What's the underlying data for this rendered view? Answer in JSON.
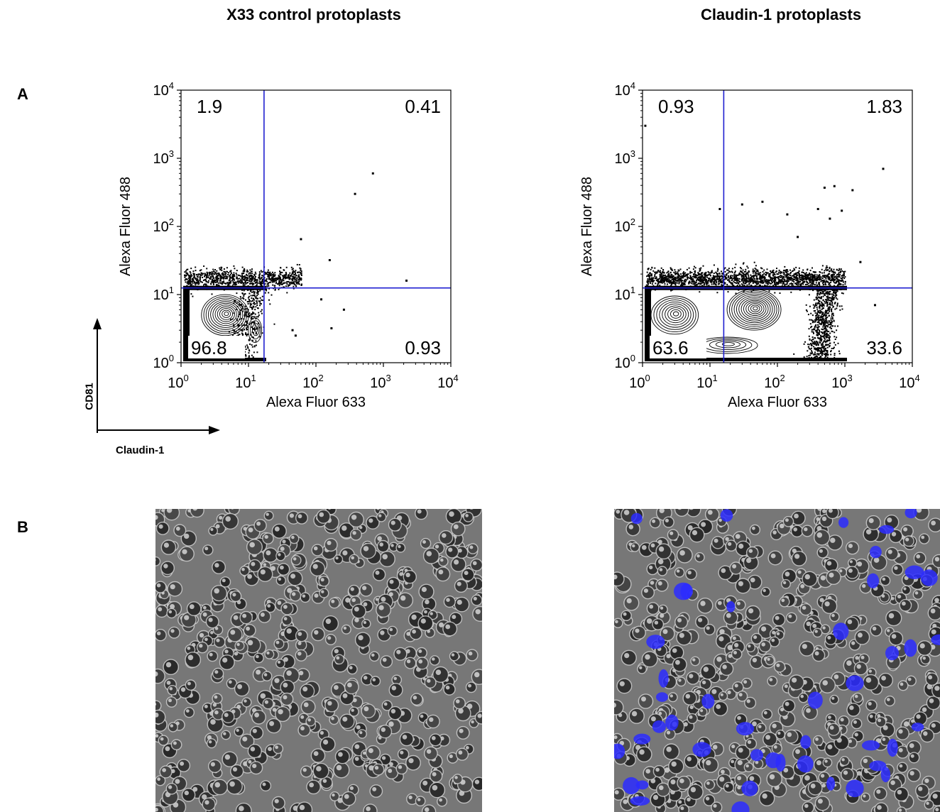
{
  "figure": {
    "column_titles": [
      "X33 control protoplasts",
      "Claudin-1 protoplasts"
    ],
    "panel_labels": [
      "A",
      "B"
    ],
    "legend_axes": {
      "vertical": "CD81",
      "horizontal": "Claudin-1"
    }
  },
  "chart_data": [
    {
      "type": "scatter",
      "title": "X33 control protoplasts",
      "xlabel": "Alexa Fluor 633",
      "ylabel": "Alexa Fluor 488",
      "xscale": "log",
      "yscale": "log",
      "xlim": [
        1,
        10000
      ],
      "ylim": [
        1,
        10000
      ],
      "xticks": [
        {
          "value": 1,
          "base": "10",
          "exp": "0"
        },
        {
          "value": 10,
          "base": "10",
          "exp": "1"
        },
        {
          "value": 100,
          "base": "10",
          "exp": "2"
        },
        {
          "value": 1000,
          "base": "10",
          "exp": "3"
        },
        {
          "value": 10000,
          "base": "10",
          "exp": "4"
        }
      ],
      "yticks": [
        {
          "value": 1,
          "base": "10",
          "exp": "0"
        },
        {
          "value": 10,
          "base": "10",
          "exp": "1"
        },
        {
          "value": 100,
          "base": "10",
          "exp": "2"
        },
        {
          "value": 1000,
          "base": "10",
          "exp": "3"
        },
        {
          "value": 10000,
          "base": "10",
          "exp": "4"
        }
      ],
      "gate": {
        "x": 17,
        "y": 12.5,
        "color": "#1f1fd0"
      },
      "quadrants": [
        {
          "position": "upper-left",
          "label": "1.9"
        },
        {
          "position": "upper-right",
          "label": "0.41"
        },
        {
          "position": "lower-left",
          "label": "96.8"
        },
        {
          "position": "lower-right",
          "label": "0.93"
        }
      ],
      "outliers": [
        [
          700,
          600
        ],
        [
          380,
          300
        ],
        [
          2200,
          16
        ],
        [
          60,
          65
        ],
        [
          160,
          32
        ],
        [
          260,
          6
        ],
        [
          120,
          8.5
        ],
        [
          170,
          3.2
        ],
        [
          45,
          3.0
        ],
        [
          50,
          2.5
        ]
      ],
      "populations": [
        {
          "cx": 4.5,
          "cy": 5.0,
          "wx": 0.35,
          "wy": 0.3,
          "rings": 11
        },
        {
          "cx": 12.5,
          "cy": 3.0,
          "wx": 0.1,
          "wy": 0.18,
          "rings": 4
        }
      ]
    },
    {
      "type": "scatter",
      "title": "Claudin-1 protoplasts",
      "xlabel": "Alexa Fluor 633",
      "ylabel": "Alexa Fluor 488",
      "xscale": "log",
      "yscale": "log",
      "xlim": [
        1,
        10000
      ],
      "ylim": [
        1,
        10000
      ],
      "xticks": [
        {
          "value": 1,
          "base": "10",
          "exp": "0"
        },
        {
          "value": 10,
          "base": "10",
          "exp": "1"
        },
        {
          "value": 100,
          "base": "10",
          "exp": "2"
        },
        {
          "value": 1000,
          "base": "10",
          "exp": "3"
        },
        {
          "value": 10000,
          "base": "10",
          "exp": "4"
        }
      ],
      "yticks": [
        {
          "value": 1,
          "base": "10",
          "exp": "0"
        },
        {
          "value": 10,
          "base": "10",
          "exp": "1"
        },
        {
          "value": 100,
          "base": "10",
          "exp": "2"
        },
        {
          "value": 1000,
          "base": "10",
          "exp": "3"
        },
        {
          "value": 10000,
          "base": "10",
          "exp": "4"
        }
      ],
      "gate": {
        "x": 16,
        "y": 12.5,
        "color": "#1f1fd0"
      },
      "quadrants": [
        {
          "position": "upper-left",
          "label": "0.93"
        },
        {
          "position": "upper-right",
          "label": "1.83"
        },
        {
          "position": "lower-left",
          "label": "63.6"
        },
        {
          "position": "lower-right",
          "label": "33.6"
        }
      ],
      "outliers": [
        [
          1.1,
          3000
        ],
        [
          3700,
          700
        ],
        [
          14,
          180
        ],
        [
          30,
          210
        ],
        [
          60,
          230
        ],
        [
          140,
          150
        ],
        [
          500,
          370
        ],
        [
          700,
          390
        ],
        [
          1300,
          340
        ],
        [
          600,
          130
        ],
        [
          400,
          180
        ],
        [
          1700,
          30
        ],
        [
          2800,
          7
        ],
        [
          900,
          170
        ],
        [
          200,
          70
        ]
      ],
      "populations": [
        {
          "cx": 3.0,
          "cy": 5.0,
          "wx": 0.35,
          "wy": 0.28,
          "rings": 9
        },
        {
          "cx": 45,
          "cy": 6.0,
          "wx": 0.4,
          "wy": 0.3,
          "rings": 12
        },
        {
          "cx": 18,
          "cy": 1.8,
          "wx": 0.45,
          "wy": 0.12,
          "rings": 5
        }
      ]
    }
  ]
}
